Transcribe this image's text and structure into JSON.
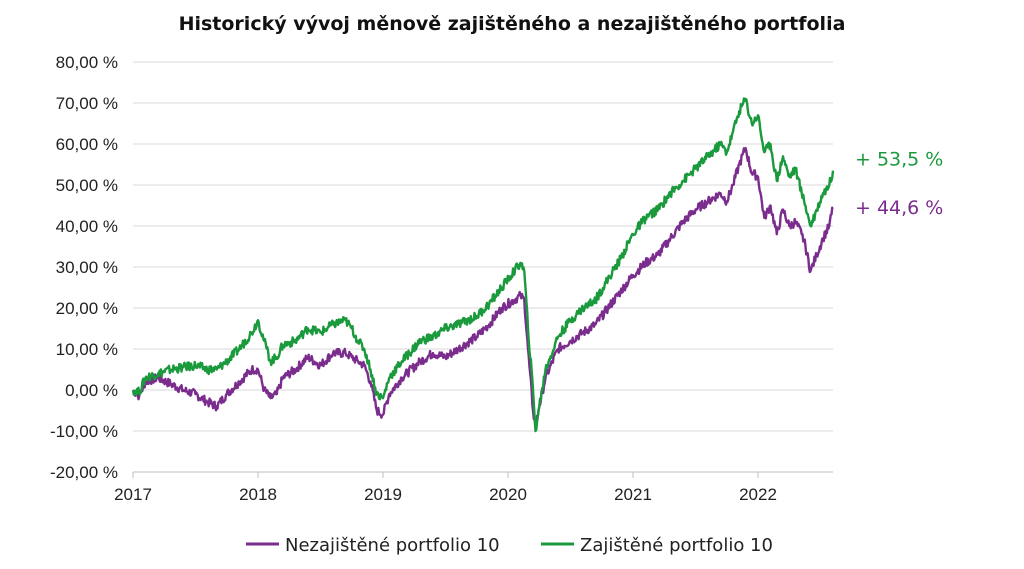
{
  "chart_data": {
    "type": "line",
    "title": "Historický vývoj měnově zajištěného a nezajištěného portfolia",
    "xlabel": "",
    "ylabel": "",
    "x_ticks": [
      "2017",
      "2018",
      "2019",
      "2020",
      "2021",
      "2022"
    ],
    "y_ticks": [
      "80,00 %",
      "70,00 %",
      "60,00 %",
      "50,00 %",
      "40,00 %",
      "30,00 %",
      "20,00 %",
      "10,00 %",
      "0,00 %",
      "-10,00 %",
      "-20,00 %"
    ],
    "xlim": [
      2017.0,
      2022.6
    ],
    "ylim": [
      -20,
      80
    ],
    "grid": true,
    "legend_position": "bottom-center",
    "series": [
      {
        "name": "Nezajištěné portfolio 10",
        "color": "#7b2d8e",
        "end_label": "+ 44,6 %",
        "points": [
          [
            2017.0,
            0
          ],
          [
            2017.05,
            -1.5
          ],
          [
            2017.1,
            2
          ],
          [
            2017.2,
            3
          ],
          [
            2017.3,
            1.5
          ],
          [
            2017.4,
            0
          ],
          [
            2017.5,
            -1
          ],
          [
            2017.6,
            -3
          ],
          [
            2017.67,
            -4
          ],
          [
            2017.75,
            -1
          ],
          [
            2017.85,
            2
          ],
          [
            2017.95,
            5
          ],
          [
            2018.0,
            5
          ],
          [
            2018.05,
            0
          ],
          [
            2018.1,
            -2
          ],
          [
            2018.15,
            -1
          ],
          [
            2018.2,
            3
          ],
          [
            2018.3,
            5
          ],
          [
            2018.4,
            8
          ],
          [
            2018.5,
            6
          ],
          [
            2018.6,
            9
          ],
          [
            2018.7,
            9
          ],
          [
            2018.75,
            8
          ],
          [
            2018.8,
            7
          ],
          [
            2018.85,
            6
          ],
          [
            2018.9,
            2
          ],
          [
            2018.95,
            -5
          ],
          [
            2019.0,
            -6
          ],
          [
            2019.05,
            -1
          ],
          [
            2019.15,
            3
          ],
          [
            2019.3,
            7
          ],
          [
            2019.4,
            9
          ],
          [
            2019.5,
            8
          ],
          [
            2019.6,
            10
          ],
          [
            2019.75,
            13
          ],
          [
            2019.85,
            16
          ],
          [
            2019.95,
            20
          ],
          [
            2020.1,
            23
          ],
          [
            2020.13,
            22
          ],
          [
            2020.16,
            10
          ],
          [
            2020.2,
            -5
          ],
          [
            2020.22,
            -9
          ],
          [
            2020.25,
            -4
          ],
          [
            2020.3,
            3
          ],
          [
            2020.4,
            10
          ],
          [
            2020.5,
            12
          ],
          [
            2020.6,
            14
          ],
          [
            2020.7,
            16
          ],
          [
            2020.8,
            20
          ],
          [
            2020.9,
            24
          ],
          [
            2021.0,
            28
          ],
          [
            2021.1,
            31
          ],
          [
            2021.2,
            33
          ],
          [
            2021.3,
            37
          ],
          [
            2021.4,
            41
          ],
          [
            2021.5,
            44
          ],
          [
            2021.6,
            46
          ],
          [
            2021.7,
            48
          ],
          [
            2021.75,
            46
          ],
          [
            2021.8,
            50
          ],
          [
            2021.85,
            55
          ],
          [
            2021.9,
            59
          ],
          [
            2021.95,
            53
          ],
          [
            2022.0,
            52
          ],
          [
            2022.05,
            42
          ],
          [
            2022.1,
            45
          ],
          [
            2022.15,
            38
          ],
          [
            2022.2,
            44
          ],
          [
            2022.25,
            40
          ],
          [
            2022.3,
            41
          ],
          [
            2022.35,
            38
          ],
          [
            2022.38,
            35
          ],
          [
            2022.42,
            29
          ],
          [
            2022.47,
            33
          ],
          [
            2022.52,
            37
          ],
          [
            2022.57,
            40
          ],
          [
            2022.6,
            44.6
          ]
        ]
      },
      {
        "name": "Zajištěné portfolio 10",
        "color": "#1a9a3c",
        "end_label": "+ 53,5 %",
        "points": [
          [
            2017.0,
            0
          ],
          [
            2017.05,
            -0.5
          ],
          [
            2017.1,
            3
          ],
          [
            2017.2,
            4
          ],
          [
            2017.3,
            5
          ],
          [
            2017.4,
            5.5
          ],
          [
            2017.5,
            6
          ],
          [
            2017.6,
            5
          ],
          [
            2017.67,
            5
          ],
          [
            2017.75,
            7
          ],
          [
            2017.85,
            10
          ],
          [
            2017.95,
            14
          ],
          [
            2018.0,
            17
          ],
          [
            2018.05,
            12
          ],
          [
            2018.1,
            7
          ],
          [
            2018.15,
            8
          ],
          [
            2018.2,
            11
          ],
          [
            2018.3,
            12
          ],
          [
            2018.4,
            15
          ],
          [
            2018.5,
            14
          ],
          [
            2018.6,
            16
          ],
          [
            2018.7,
            17
          ],
          [
            2018.75,
            15
          ],
          [
            2018.8,
            12
          ],
          [
            2018.85,
            10
          ],
          [
            2018.9,
            5
          ],
          [
            2018.95,
            -1
          ],
          [
            2019.0,
            -2
          ],
          [
            2019.05,
            3
          ],
          [
            2019.15,
            7
          ],
          [
            2019.3,
            12
          ],
          [
            2019.4,
            13
          ],
          [
            2019.5,
            15
          ],
          [
            2019.6,
            16
          ],
          [
            2019.75,
            18
          ],
          [
            2019.85,
            21
          ],
          [
            2019.95,
            25
          ],
          [
            2020.1,
            31
          ],
          [
            2020.13,
            29
          ],
          [
            2020.16,
            15
          ],
          [
            2020.2,
            0
          ],
          [
            2020.22,
            -10
          ],
          [
            2020.25,
            -4
          ],
          [
            2020.3,
            5
          ],
          [
            2020.4,
            13
          ],
          [
            2020.5,
            17
          ],
          [
            2020.6,
            20
          ],
          [
            2020.7,
            22
          ],
          [
            2020.8,
            27
          ],
          [
            2020.9,
            32
          ],
          [
            2021.0,
            38
          ],
          [
            2021.1,
            42
          ],
          [
            2021.2,
            44
          ],
          [
            2021.3,
            48
          ],
          [
            2021.4,
            51
          ],
          [
            2021.5,
            54
          ],
          [
            2021.6,
            57
          ],
          [
            2021.7,
            60
          ],
          [
            2021.75,
            58
          ],
          [
            2021.8,
            63
          ],
          [
            2021.85,
            68
          ],
          [
            2021.9,
            71
          ],
          [
            2021.95,
            65
          ],
          [
            2022.0,
            67
          ],
          [
            2022.05,
            58
          ],
          [
            2022.1,
            60
          ],
          [
            2022.15,
            51
          ],
          [
            2022.2,
            57
          ],
          [
            2022.25,
            52
          ],
          [
            2022.3,
            54
          ],
          [
            2022.35,
            48
          ],
          [
            2022.38,
            45
          ],
          [
            2022.42,
            40
          ],
          [
            2022.47,
            44
          ],
          [
            2022.52,
            48
          ],
          [
            2022.57,
            50
          ],
          [
            2022.6,
            53.5
          ]
        ]
      }
    ]
  }
}
